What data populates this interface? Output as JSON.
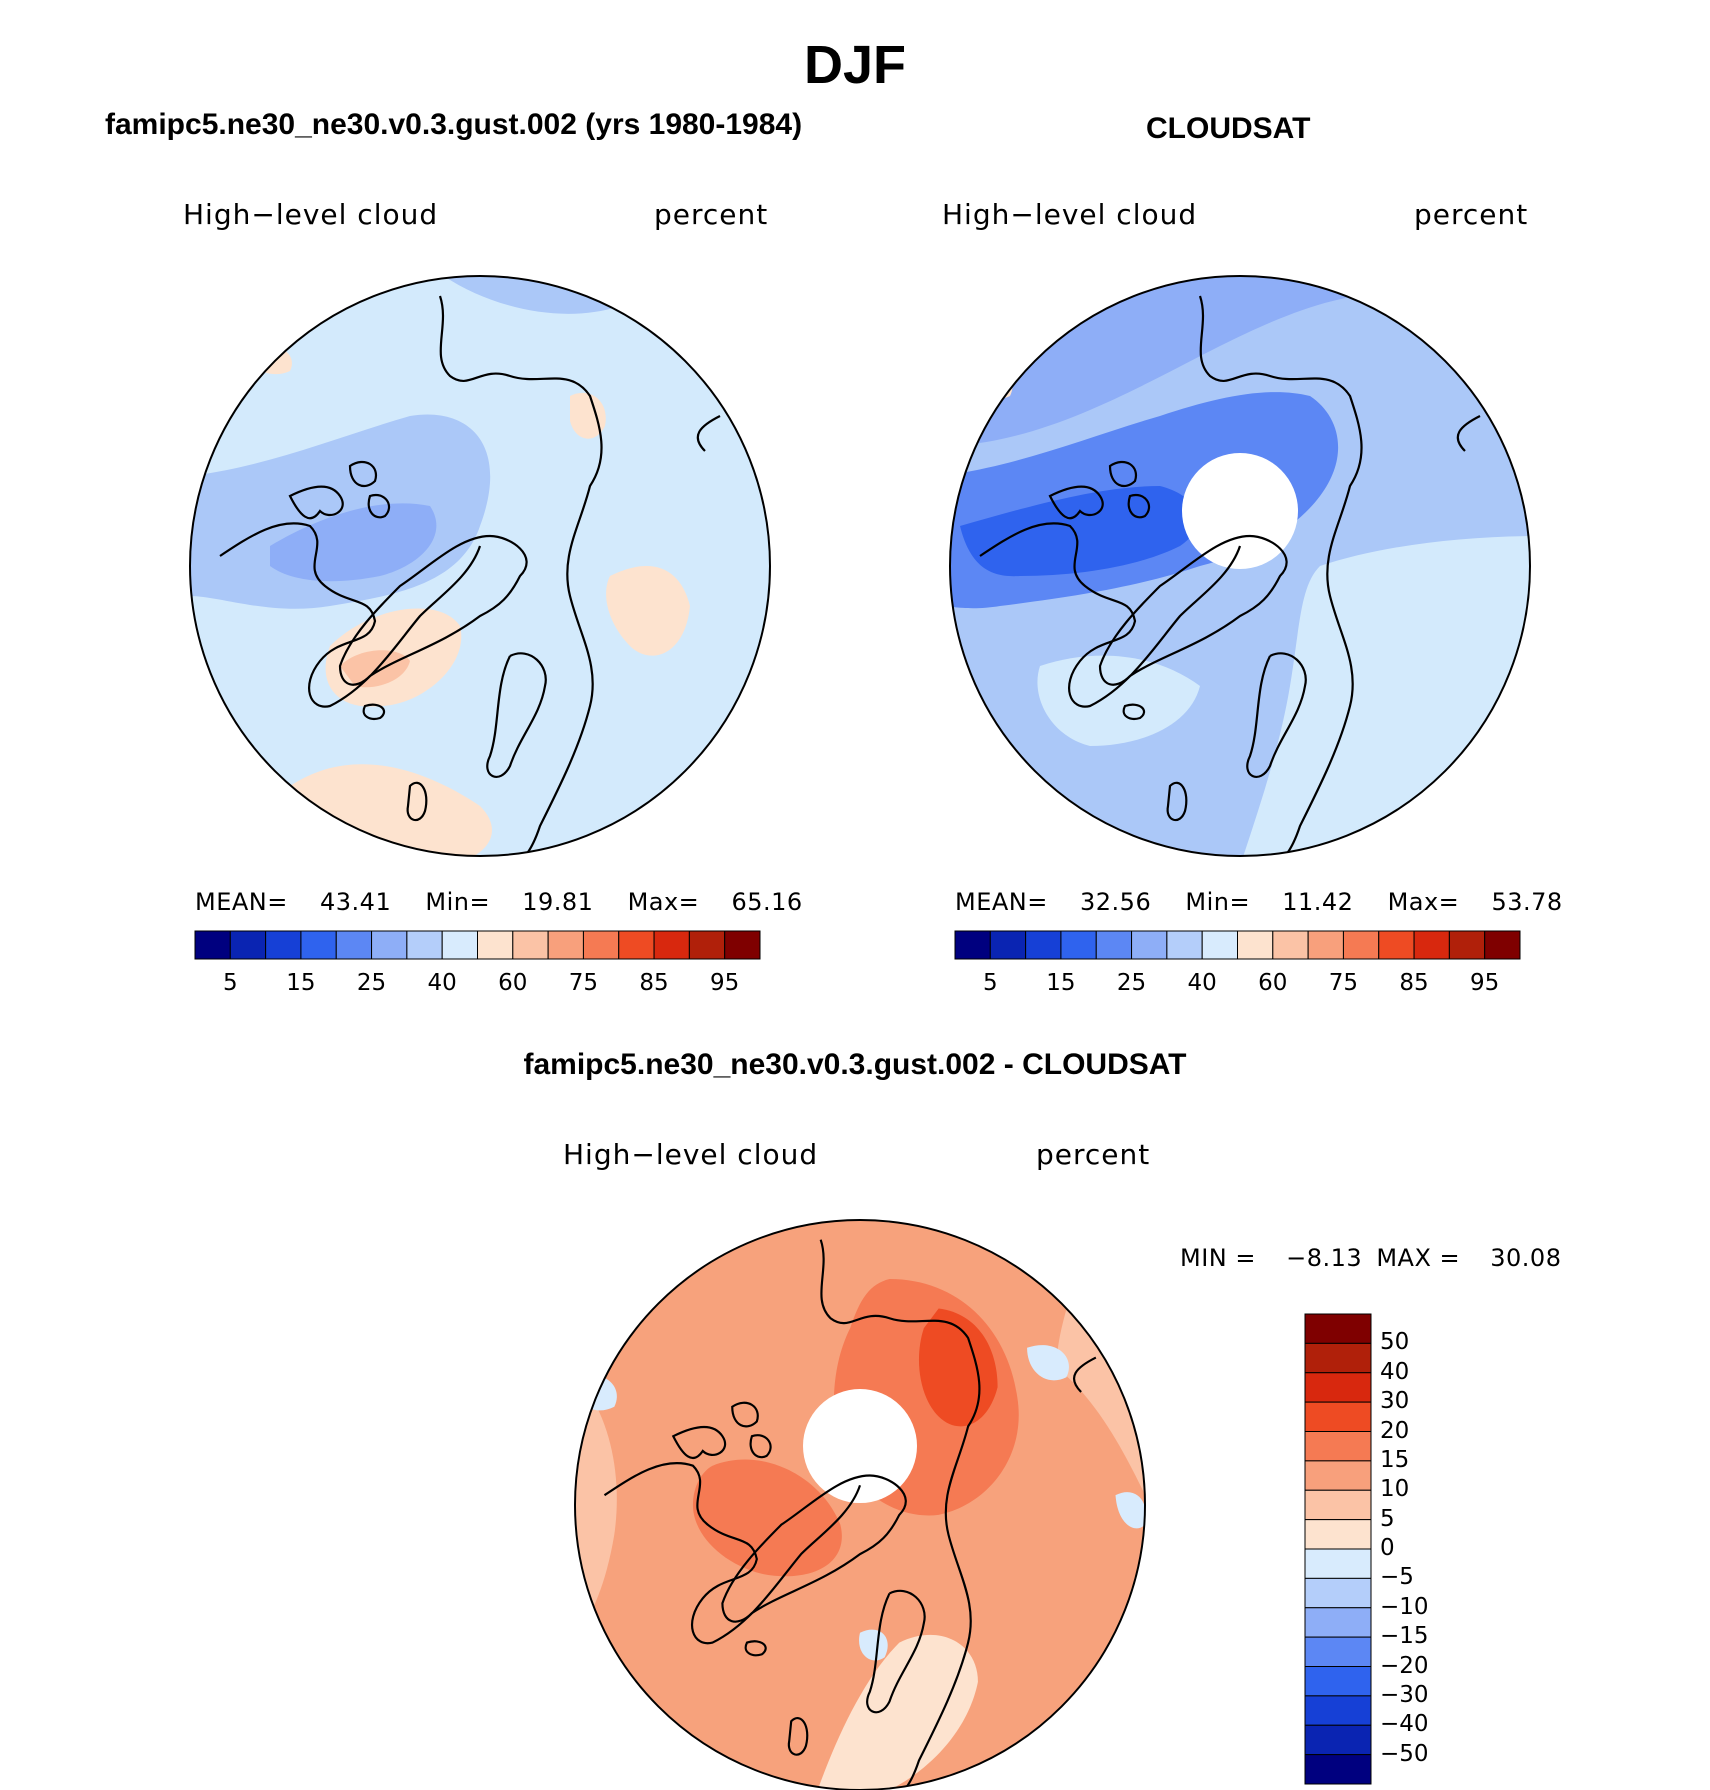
{
  "figure": {
    "title": "DJF"
  },
  "panels": {
    "model": {
      "title": "famipc5.ne30_ne30.v0.3.gust.002 (yrs 1980-1984)",
      "variable": "High−level cloud",
      "units": "percent",
      "mean_label": "MEAN=",
      "mean": "43.41",
      "min_label": "Min=",
      "min": "19.81",
      "max_label": "Max=",
      "max": "65.16",
      "base_color": "#d3eafc"
    },
    "obs": {
      "title": "CLOUDSAT",
      "variable": "High−level cloud",
      "units": "percent",
      "mean_label": "MEAN=",
      "mean": "32.56",
      "min_label": "Min=",
      "min": "11.42",
      "max_label": "Max=",
      "max": "53.78",
      "base_color": "#abc8f8"
    },
    "diff": {
      "title": "famipc5.ne30_ne30.v0.3.gust.002 - CLOUDSAT",
      "variable": "High−level cloud",
      "units": "percent",
      "min_label": "MIN =",
      "min": "−8.13",
      "max_label": "MAX =",
      "max": "30.08",
      "base_color": "#f7a27c"
    }
  },
  "colorbar_abs": {
    "colors": [
      "#00007f",
      "#0a24b2",
      "#1640d6",
      "#2f63ee",
      "#5c87f4",
      "#8eaef7",
      "#b4cefa",
      "#d8ebfd",
      "#fde3cf",
      "#fbc3a6",
      "#f8a07c",
      "#f57a53",
      "#ee4b23",
      "#d8280e",
      "#b0200a",
      "#7f0000"
    ],
    "labels": [
      "5",
      "15",
      "25",
      "40",
      "60",
      "75",
      "85",
      "95"
    ]
  },
  "colorbar_diff": {
    "colors": [
      "#7f0000",
      "#b0200a",
      "#d8280e",
      "#ee4b23",
      "#f57a53",
      "#f8a07c",
      "#fbc3a6",
      "#fde3cf",
      "#d8ebfd",
      "#b4cefa",
      "#8eaef7",
      "#5c87f4",
      "#2f63ee",
      "#1640d6",
      "#0a24b2",
      "#00007f"
    ],
    "labels": [
      "50",
      "40",
      "30",
      "20",
      "15",
      "10",
      "5",
      "0",
      "−5",
      "−10",
      "−15",
      "−20",
      "−30",
      "−40",
      "−50"
    ]
  }
}
